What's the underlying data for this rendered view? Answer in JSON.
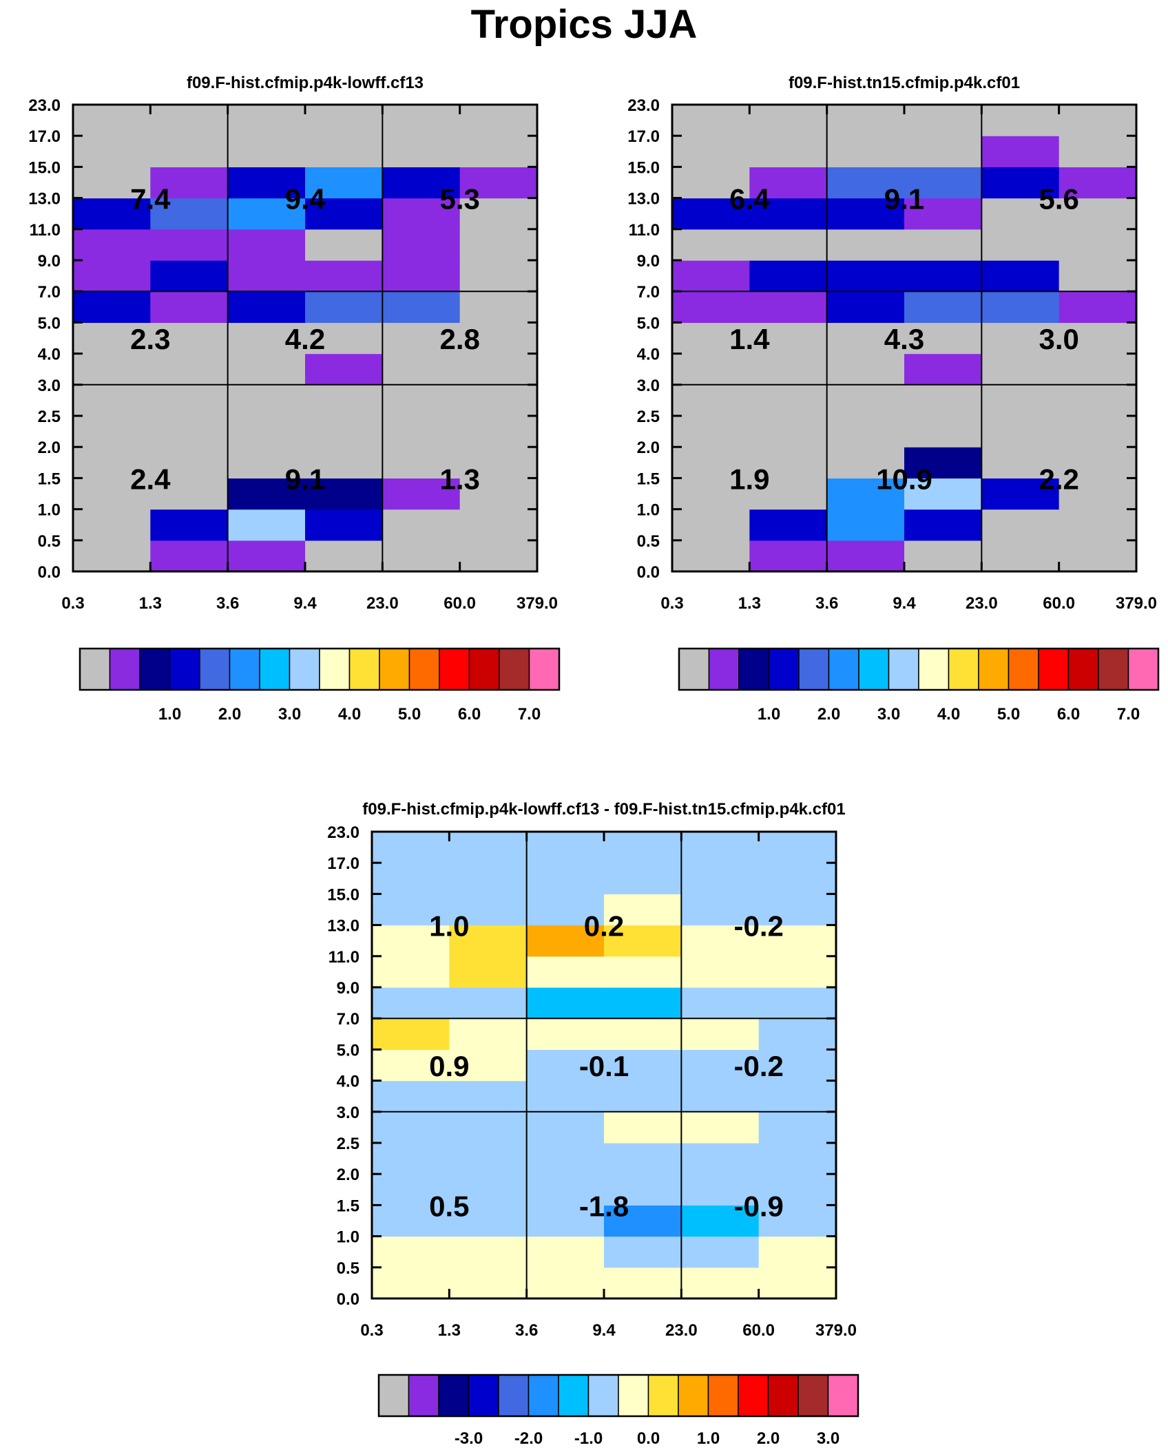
{
  "figure_title": "Tropics JJA",
  "x_tick_labels": [
    "0.3",
    "1.3",
    "3.6",
    "9.4",
    "23.0",
    "60.0",
    "379.0"
  ],
  "y_tick_labels": [
    "0.0",
    "0.5",
    "1.0",
    "1.5",
    "2.0",
    "2.5",
    "3.0",
    "4.0",
    "5.0",
    "7.0",
    "9.0",
    "11.0",
    "13.0",
    "15.0",
    "17.0",
    "23.0"
  ],
  "abs_colorbar": {
    "colors": [
      "#c0c0c0",
      "#8a2be2",
      "#00008b",
      "#0000cd",
      "#4169e1",
      "#1e90ff",
      "#00bfff",
      "#a0d0ff",
      "#ffffc8",
      "#ffe135",
      "#ffaa00",
      "#ff6a00",
      "#ff0000",
      "#cc0000",
      "#a52a2a",
      "#ff69b4"
    ],
    "labels": [
      "1.0",
      "2.0",
      "3.0",
      "4.0",
      "5.0",
      "6.0",
      "7.0"
    ]
  },
  "diff_colorbar": {
    "colors": [
      "#c0c0c0",
      "#8a2be2",
      "#00008b",
      "#0000cd",
      "#4169e1",
      "#1e90ff",
      "#00bfff",
      "#a0d0ff",
      "#ffffc8",
      "#ffe135",
      "#ffaa00",
      "#ff6a00",
      "#ff0000",
      "#cc0000",
      "#a52a2a",
      "#ff69b4"
    ],
    "labels": [
      "-3.0",
      "-2.0",
      "-1.0",
      "0.0",
      "1.0",
      "2.0",
      "3.0"
    ]
  },
  "chart_data": [
    {
      "type": "heatmap",
      "title": "f09.F-hist.cfmip.p4k-lowff.cf13",
      "x_bins": [
        "0.3",
        "1.3",
        "3.6",
        "9.4",
        "23.0",
        "60.0",
        "379.0"
      ],
      "y_bins": [
        "0.0",
        "0.5",
        "1.0",
        "1.5",
        "2.0",
        "2.5",
        "3.0",
        "4.0",
        "5.0",
        "7.0",
        "9.0",
        "11.0",
        "13.0",
        "15.0",
        "17.0",
        "23.0"
      ],
      "grid": [
        [
          0,
          1,
          1,
          0,
          0,
          0
        ],
        [
          0,
          3,
          7,
          3,
          0,
          0
        ],
        [
          0,
          0,
          2,
          2,
          1,
          0
        ],
        [
          0,
          0,
          0,
          0,
          0,
          0
        ],
        [
          0,
          0,
          0,
          0,
          0,
          0
        ],
        [
          0,
          0,
          0,
          0,
          0,
          0
        ],
        [
          0,
          0,
          0,
          1,
          0,
          0
        ],
        [
          0,
          0,
          0,
          0,
          0,
          0
        ],
        [
          3,
          1,
          3,
          4,
          4,
          0
        ],
        [
          1,
          3,
          1,
          1,
          1,
          0
        ],
        [
          1,
          1,
          1,
          0,
          1,
          0
        ],
        [
          3,
          4,
          5,
          3,
          1,
          0
        ],
        [
          0,
          1,
          3,
          5,
          3,
          1
        ],
        [
          0,
          0,
          0,
          0,
          0,
          0
        ],
        [
          0,
          0,
          0,
          0,
          0,
          0
        ]
      ],
      "annotations": [
        {
          "col": 0,
          "row": 0,
          "text": "2.4"
        },
        {
          "col": 1,
          "row": 0,
          "text": "9.1"
        },
        {
          "col": 2,
          "row": 0,
          "text": "1.3"
        },
        {
          "col": 0,
          "row": 1,
          "text": "2.3"
        },
        {
          "col": 1,
          "row": 1,
          "text": "4.2"
        },
        {
          "col": 2,
          "row": 1,
          "text": "2.8"
        },
        {
          "col": 0,
          "row": 2,
          "text": "7.4"
        },
        {
          "col": 1,
          "row": 2,
          "text": "9.4"
        },
        {
          "col": 2,
          "row": 2,
          "text": "5.3"
        }
      ]
    },
    {
      "type": "heatmap",
      "title": "f09.F-hist.tn15.cfmip.p4k.cf01",
      "x_bins": [
        "0.3",
        "1.3",
        "3.6",
        "9.4",
        "23.0",
        "60.0",
        "379.0"
      ],
      "y_bins": [
        "0.0",
        "0.5",
        "1.0",
        "1.5",
        "2.0",
        "2.5",
        "3.0",
        "4.0",
        "5.0",
        "7.0",
        "9.0",
        "11.0",
        "13.0",
        "15.0",
        "17.0",
        "23.0"
      ],
      "grid": [
        [
          0,
          1,
          1,
          0,
          0,
          0
        ],
        [
          0,
          3,
          5,
          3,
          0,
          0
        ],
        [
          0,
          0,
          5,
          7,
          3,
          0
        ],
        [
          0,
          0,
          0,
          2,
          0,
          0
        ],
        [
          0,
          0,
          0,
          0,
          0,
          0
        ],
        [
          0,
          0,
          0,
          0,
          0,
          0
        ],
        [
          0,
          0,
          0,
          1,
          0,
          0
        ],
        [
          0,
          0,
          0,
          0,
          0,
          0
        ],
        [
          1,
          1,
          3,
          4,
          4,
          1
        ],
        [
          1,
          3,
          3,
          3,
          3,
          0
        ],
        [
          0,
          0,
          0,
          0,
          0,
          0
        ],
        [
          3,
          3,
          3,
          1,
          0,
          0
        ],
        [
          0,
          1,
          4,
          4,
          3,
          1
        ],
        [
          0,
          0,
          0,
          0,
          1,
          0
        ],
        [
          0,
          0,
          0,
          0,
          0,
          0
        ]
      ],
      "annotations": [
        {
          "col": 0,
          "row": 0,
          "text": "1.9"
        },
        {
          "col": 1,
          "row": 0,
          "text": "10.9"
        },
        {
          "col": 2,
          "row": 0,
          "text": "2.2"
        },
        {
          "col": 0,
          "row": 1,
          "text": "1.4"
        },
        {
          "col": 1,
          "row": 1,
          "text": "4.3"
        },
        {
          "col": 2,
          "row": 1,
          "text": "3.0"
        },
        {
          "col": 0,
          "row": 2,
          "text": "6.4"
        },
        {
          "col": 1,
          "row": 2,
          "text": "9.1"
        },
        {
          "col": 2,
          "row": 2,
          "text": "5.6"
        }
      ]
    },
    {
      "type": "heatmap",
      "title": "f09.F-hist.cfmip.p4k-lowff.cf13 - f09.F-hist.tn15.cfmip.p4k.cf01",
      "x_bins": [
        "0.3",
        "1.3",
        "3.6",
        "9.4",
        "23.0",
        "60.0",
        "379.0"
      ],
      "y_bins": [
        "0.0",
        "0.5",
        "1.0",
        "1.5",
        "2.0",
        "2.5",
        "3.0",
        "4.0",
        "5.0",
        "7.0",
        "9.0",
        "11.0",
        "13.0",
        "15.0",
        "17.0",
        "23.0"
      ],
      "grid": [
        [
          8,
          8,
          8,
          8,
          8,
          8
        ],
        [
          8,
          8,
          8,
          7,
          7,
          8
        ],
        [
          7,
          7,
          7,
          5,
          6,
          7
        ],
        [
          7,
          7,
          7,
          7,
          7,
          7
        ],
        [
          7,
          7,
          7,
          7,
          7,
          7
        ],
        [
          7,
          7,
          7,
          8,
          8,
          7
        ],
        [
          7,
          7,
          7,
          7,
          7,
          7
        ],
        [
          8,
          8,
          7,
          7,
          7,
          7
        ],
        [
          9,
          8,
          8,
          8,
          8,
          7
        ],
        [
          7,
          7,
          6,
          6,
          7,
          7
        ],
        [
          8,
          9,
          8,
          8,
          8,
          8
        ],
        [
          8,
          9,
          10,
          9,
          8,
          8
        ],
        [
          7,
          7,
          7,
          8,
          7,
          7
        ],
        [
          7,
          7,
          7,
          7,
          7,
          7
        ],
        [
          7,
          7,
          7,
          7,
          7,
          7
        ]
      ],
      "annotations": [
        {
          "col": 0,
          "row": 0,
          "text": "0.5"
        },
        {
          "col": 1,
          "row": 0,
          "text": "-1.8"
        },
        {
          "col": 2,
          "row": 0,
          "text": "-0.9"
        },
        {
          "col": 0,
          "row": 1,
          "text": "0.9"
        },
        {
          "col": 1,
          "row": 1,
          "text": "-0.1"
        },
        {
          "col": 2,
          "row": 1,
          "text": "-0.2"
        },
        {
          "col": 0,
          "row": 2,
          "text": "1.0"
        },
        {
          "col": 1,
          "row": 2,
          "text": "0.2"
        },
        {
          "col": 2,
          "row": 2,
          "text": "-0.2"
        }
      ]
    }
  ]
}
